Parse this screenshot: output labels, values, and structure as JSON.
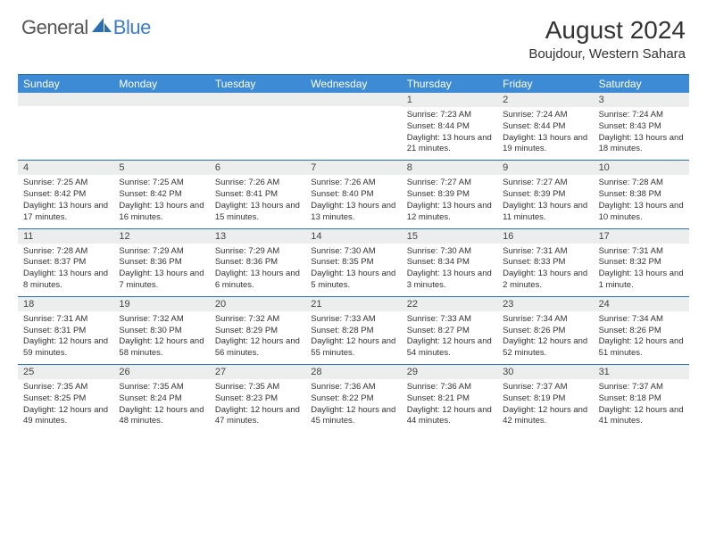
{
  "brand": {
    "part1": "General",
    "part2": "Blue"
  },
  "title": "August 2024",
  "location": "Boujdour, Western Sahara",
  "colors": {
    "header_bg": "#3d8bd4",
    "rule": "#2b6fb3",
    "numbar_bg": "#eceded",
    "brand_blue": "#3d7cc9"
  },
  "day_names": [
    "Sunday",
    "Monday",
    "Tuesday",
    "Wednesday",
    "Thursday",
    "Friday",
    "Saturday"
  ],
  "weeks": [
    [
      {
        "n": "",
        "sr": "",
        "ss": "",
        "dl": ""
      },
      {
        "n": "",
        "sr": "",
        "ss": "",
        "dl": ""
      },
      {
        "n": "",
        "sr": "",
        "ss": "",
        "dl": ""
      },
      {
        "n": "",
        "sr": "",
        "ss": "",
        "dl": ""
      },
      {
        "n": "1",
        "sr": "Sunrise: 7:23 AM",
        "ss": "Sunset: 8:44 PM",
        "dl": "Daylight: 13 hours and 21 minutes."
      },
      {
        "n": "2",
        "sr": "Sunrise: 7:24 AM",
        "ss": "Sunset: 8:44 PM",
        "dl": "Daylight: 13 hours and 19 minutes."
      },
      {
        "n": "3",
        "sr": "Sunrise: 7:24 AM",
        "ss": "Sunset: 8:43 PM",
        "dl": "Daylight: 13 hours and 18 minutes."
      }
    ],
    [
      {
        "n": "4",
        "sr": "Sunrise: 7:25 AM",
        "ss": "Sunset: 8:42 PM",
        "dl": "Daylight: 13 hours and 17 minutes."
      },
      {
        "n": "5",
        "sr": "Sunrise: 7:25 AM",
        "ss": "Sunset: 8:42 PM",
        "dl": "Daylight: 13 hours and 16 minutes."
      },
      {
        "n": "6",
        "sr": "Sunrise: 7:26 AM",
        "ss": "Sunset: 8:41 PM",
        "dl": "Daylight: 13 hours and 15 minutes."
      },
      {
        "n": "7",
        "sr": "Sunrise: 7:26 AM",
        "ss": "Sunset: 8:40 PM",
        "dl": "Daylight: 13 hours and 13 minutes."
      },
      {
        "n": "8",
        "sr": "Sunrise: 7:27 AM",
        "ss": "Sunset: 8:39 PM",
        "dl": "Daylight: 13 hours and 12 minutes."
      },
      {
        "n": "9",
        "sr": "Sunrise: 7:27 AM",
        "ss": "Sunset: 8:39 PM",
        "dl": "Daylight: 13 hours and 11 minutes."
      },
      {
        "n": "10",
        "sr": "Sunrise: 7:28 AM",
        "ss": "Sunset: 8:38 PM",
        "dl": "Daylight: 13 hours and 10 minutes."
      }
    ],
    [
      {
        "n": "11",
        "sr": "Sunrise: 7:28 AM",
        "ss": "Sunset: 8:37 PM",
        "dl": "Daylight: 13 hours and 8 minutes."
      },
      {
        "n": "12",
        "sr": "Sunrise: 7:29 AM",
        "ss": "Sunset: 8:36 PM",
        "dl": "Daylight: 13 hours and 7 minutes."
      },
      {
        "n": "13",
        "sr": "Sunrise: 7:29 AM",
        "ss": "Sunset: 8:36 PM",
        "dl": "Daylight: 13 hours and 6 minutes."
      },
      {
        "n": "14",
        "sr": "Sunrise: 7:30 AM",
        "ss": "Sunset: 8:35 PM",
        "dl": "Daylight: 13 hours and 5 minutes."
      },
      {
        "n": "15",
        "sr": "Sunrise: 7:30 AM",
        "ss": "Sunset: 8:34 PM",
        "dl": "Daylight: 13 hours and 3 minutes."
      },
      {
        "n": "16",
        "sr": "Sunrise: 7:31 AM",
        "ss": "Sunset: 8:33 PM",
        "dl": "Daylight: 13 hours and 2 minutes."
      },
      {
        "n": "17",
        "sr": "Sunrise: 7:31 AM",
        "ss": "Sunset: 8:32 PM",
        "dl": "Daylight: 13 hours and 1 minute."
      }
    ],
    [
      {
        "n": "18",
        "sr": "Sunrise: 7:31 AM",
        "ss": "Sunset: 8:31 PM",
        "dl": "Daylight: 12 hours and 59 minutes."
      },
      {
        "n": "19",
        "sr": "Sunrise: 7:32 AM",
        "ss": "Sunset: 8:30 PM",
        "dl": "Daylight: 12 hours and 58 minutes."
      },
      {
        "n": "20",
        "sr": "Sunrise: 7:32 AM",
        "ss": "Sunset: 8:29 PM",
        "dl": "Daylight: 12 hours and 56 minutes."
      },
      {
        "n": "21",
        "sr": "Sunrise: 7:33 AM",
        "ss": "Sunset: 8:28 PM",
        "dl": "Daylight: 12 hours and 55 minutes."
      },
      {
        "n": "22",
        "sr": "Sunrise: 7:33 AM",
        "ss": "Sunset: 8:27 PM",
        "dl": "Daylight: 12 hours and 54 minutes."
      },
      {
        "n": "23",
        "sr": "Sunrise: 7:34 AM",
        "ss": "Sunset: 8:26 PM",
        "dl": "Daylight: 12 hours and 52 minutes."
      },
      {
        "n": "24",
        "sr": "Sunrise: 7:34 AM",
        "ss": "Sunset: 8:26 PM",
        "dl": "Daylight: 12 hours and 51 minutes."
      }
    ],
    [
      {
        "n": "25",
        "sr": "Sunrise: 7:35 AM",
        "ss": "Sunset: 8:25 PM",
        "dl": "Daylight: 12 hours and 49 minutes."
      },
      {
        "n": "26",
        "sr": "Sunrise: 7:35 AM",
        "ss": "Sunset: 8:24 PM",
        "dl": "Daylight: 12 hours and 48 minutes."
      },
      {
        "n": "27",
        "sr": "Sunrise: 7:35 AM",
        "ss": "Sunset: 8:23 PM",
        "dl": "Daylight: 12 hours and 47 minutes."
      },
      {
        "n": "28",
        "sr": "Sunrise: 7:36 AM",
        "ss": "Sunset: 8:22 PM",
        "dl": "Daylight: 12 hours and 45 minutes."
      },
      {
        "n": "29",
        "sr": "Sunrise: 7:36 AM",
        "ss": "Sunset: 8:21 PM",
        "dl": "Daylight: 12 hours and 44 minutes."
      },
      {
        "n": "30",
        "sr": "Sunrise: 7:37 AM",
        "ss": "Sunset: 8:19 PM",
        "dl": "Daylight: 12 hours and 42 minutes."
      },
      {
        "n": "31",
        "sr": "Sunrise: 7:37 AM",
        "ss": "Sunset: 8:18 PM",
        "dl": "Daylight: 12 hours and 41 minutes."
      }
    ]
  ]
}
